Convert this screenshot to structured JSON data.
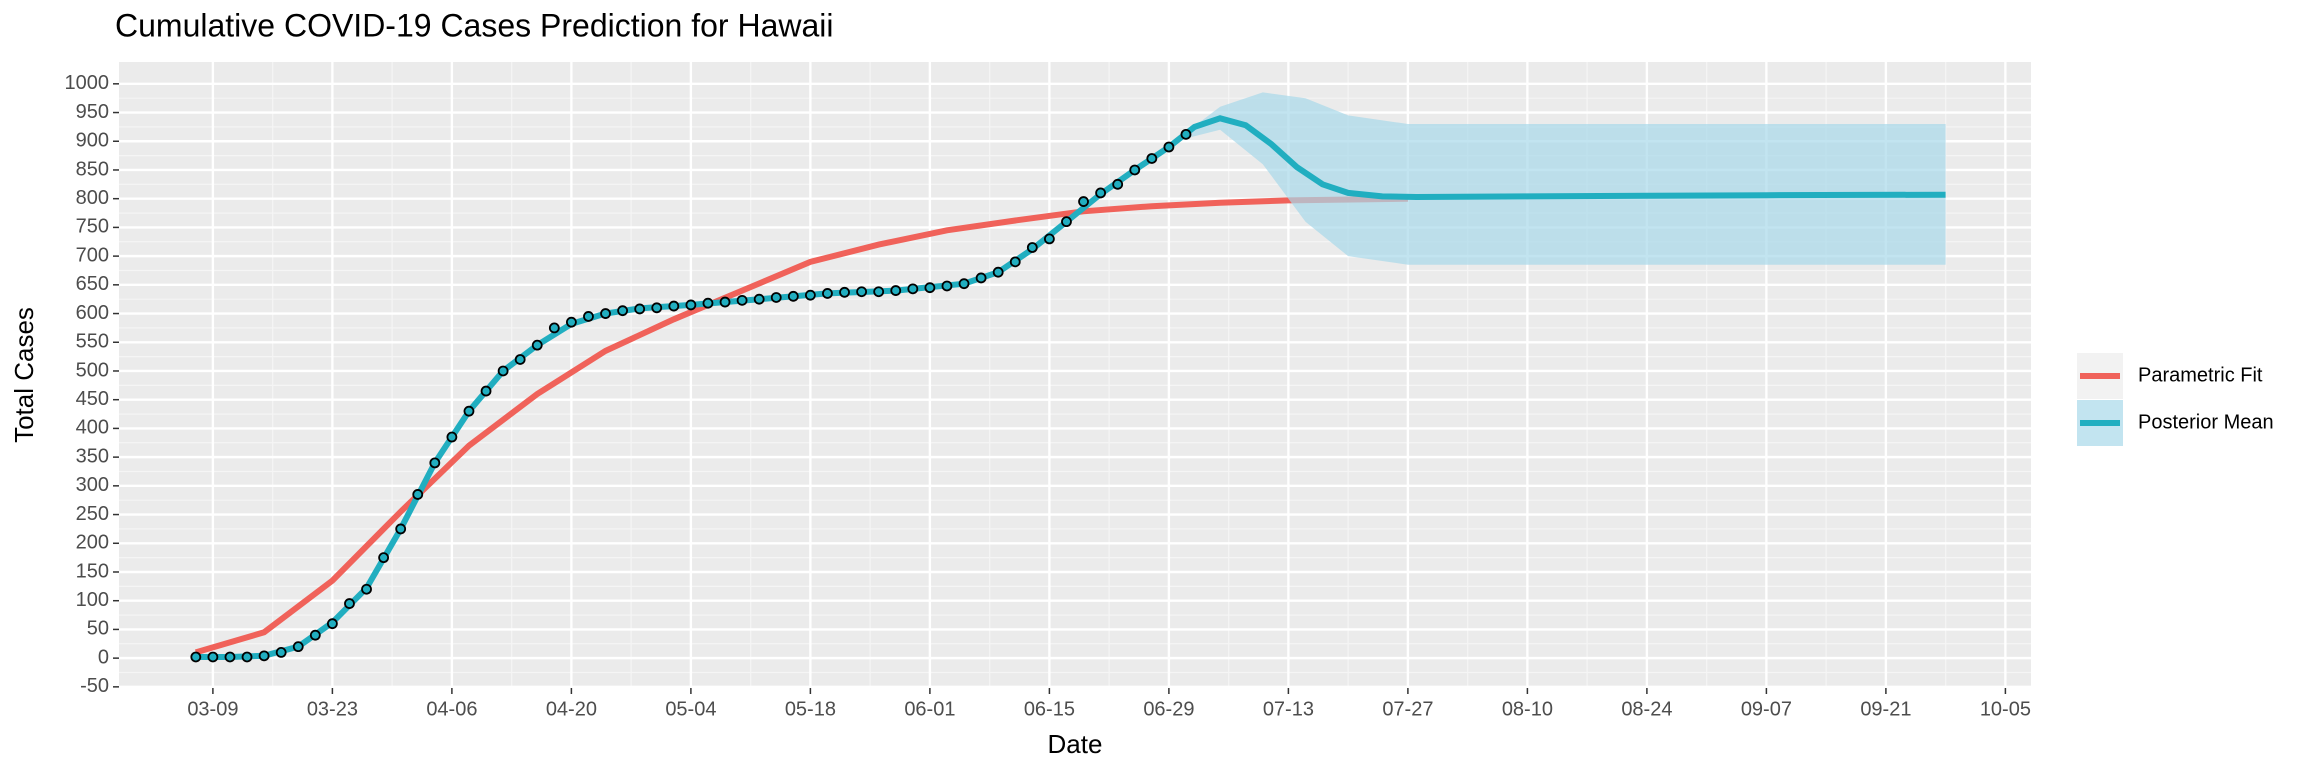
{
  "chart_data": {
    "type": "line",
    "title": "Cumulative COVID-19 Cases Prediction for Hawaii",
    "x_label": "Date",
    "y_label": "Total Cases",
    "xlim": [
      "02-27",
      "10-08"
    ],
    "ylim": [
      -52,
      1038
    ],
    "xticks": [
      "03-09",
      "03-23",
      "04-06",
      "04-20",
      "05-04",
      "05-18",
      "06-01",
      "06-15",
      "06-29",
      "07-13",
      "07-27",
      "08-10",
      "08-24",
      "09-07",
      "09-21",
      "10-05"
    ],
    "yticks": [
      -50,
      0,
      50,
      100,
      150,
      200,
      250,
      300,
      350,
      400,
      450,
      500,
      550,
      600,
      650,
      700,
      750,
      800,
      850,
      900,
      950,
      1000
    ],
    "grid": true,
    "legend": "right",
    "series": [
      {
        "name": "Parametric Fit",
        "color": "#f0625a",
        "x": [
          "03-07",
          "03-15",
          "03-23",
          "03-31",
          "04-08",
          "04-16",
          "04-24",
          "05-02",
          "05-10",
          "05-18",
          "05-26",
          "06-03",
          "06-11",
          "06-19",
          "06-27",
          "07-05",
          "07-13",
          "07-27"
        ],
        "values": [
          10,
          45,
          135,
          255,
          370,
          460,
          535,
          590,
          640,
          690,
          720,
          745,
          762,
          778,
          787,
          793,
          797,
          800
        ]
      },
      {
        "name": "Posterior Mean",
        "color": "#21aec0",
        "x": [
          "03-07",
          "03-11",
          "03-15",
          "03-19",
          "03-23",
          "03-27",
          "03-31",
          "04-04",
          "04-08",
          "04-12",
          "04-16",
          "04-20",
          "04-24",
          "04-28",
          "05-04",
          "05-12",
          "05-20",
          "05-28",
          "06-05",
          "06-09",
          "06-13",
          "06-17",
          "06-21",
          "06-25",
          "06-29",
          "07-02",
          "07-05",
          "07-08",
          "07-11",
          "07-14",
          "07-17",
          "07-20",
          "07-24",
          "07-28",
          "08-10",
          "08-24",
          "09-07",
          "09-28"
        ],
        "values": [
          2,
          2,
          4,
          20,
          62,
          122,
          225,
          340,
          430,
          500,
          545,
          582,
          600,
          609,
          615,
          625,
          635,
          640,
          652,
          672,
          712,
          760,
          808,
          850,
          890,
          925,
          940,
          928,
          895,
          855,
          825,
          810,
          804,
          803,
          804,
          805,
          806,
          807
        ]
      }
    ],
    "band": {
      "color": "#a8d8ea",
      "x": [
        "07-01",
        "07-05",
        "07-10",
        "07-15",
        "07-20",
        "07-27",
        "09-28"
      ],
      "lower": [
        905,
        920,
        860,
        760,
        700,
        685,
        685
      ],
      "upper": [
        915,
        960,
        985,
        975,
        945,
        930,
        930
      ]
    },
    "observed": {
      "color": "#21aec0",
      "x": [
        "03-07",
        "03-09",
        "03-11",
        "03-13",
        "03-15",
        "03-17",
        "03-19",
        "03-21",
        "03-23",
        "03-25",
        "03-27",
        "03-29",
        "03-31",
        "04-02",
        "04-04",
        "04-06",
        "04-08",
        "04-10",
        "04-12",
        "04-14",
        "04-16",
        "04-18",
        "04-20",
        "04-22",
        "04-24",
        "04-26",
        "04-28",
        "04-30",
        "05-02",
        "05-04",
        "05-06",
        "05-08",
        "05-10",
        "05-12",
        "05-14",
        "05-16",
        "05-18",
        "05-20",
        "05-22",
        "05-24",
        "05-26",
        "05-28",
        "05-30",
        "06-01",
        "06-03",
        "06-05",
        "06-07",
        "06-09",
        "06-11",
        "06-13",
        "06-15",
        "06-17",
        "06-19",
        "06-21",
        "06-23",
        "06-25",
        "06-27",
        "06-29",
        "07-01"
      ],
      "values": [
        2,
        2,
        2,
        2,
        4,
        10,
        20,
        40,
        60,
        95,
        120,
        175,
        225,
        285,
        340,
        385,
        430,
        465,
        500,
        520,
        545,
        575,
        585,
        595,
        600,
        605,
        608,
        610,
        613,
        615,
        618,
        620,
        623,
        625,
        628,
        630,
        632,
        635,
        637,
        638,
        638,
        640,
        643,
        645,
        648,
        652,
        662,
        672,
        690,
        715,
        730,
        760,
        795,
        810,
        825,
        850,
        870,
        890,
        912
      ]
    }
  }
}
